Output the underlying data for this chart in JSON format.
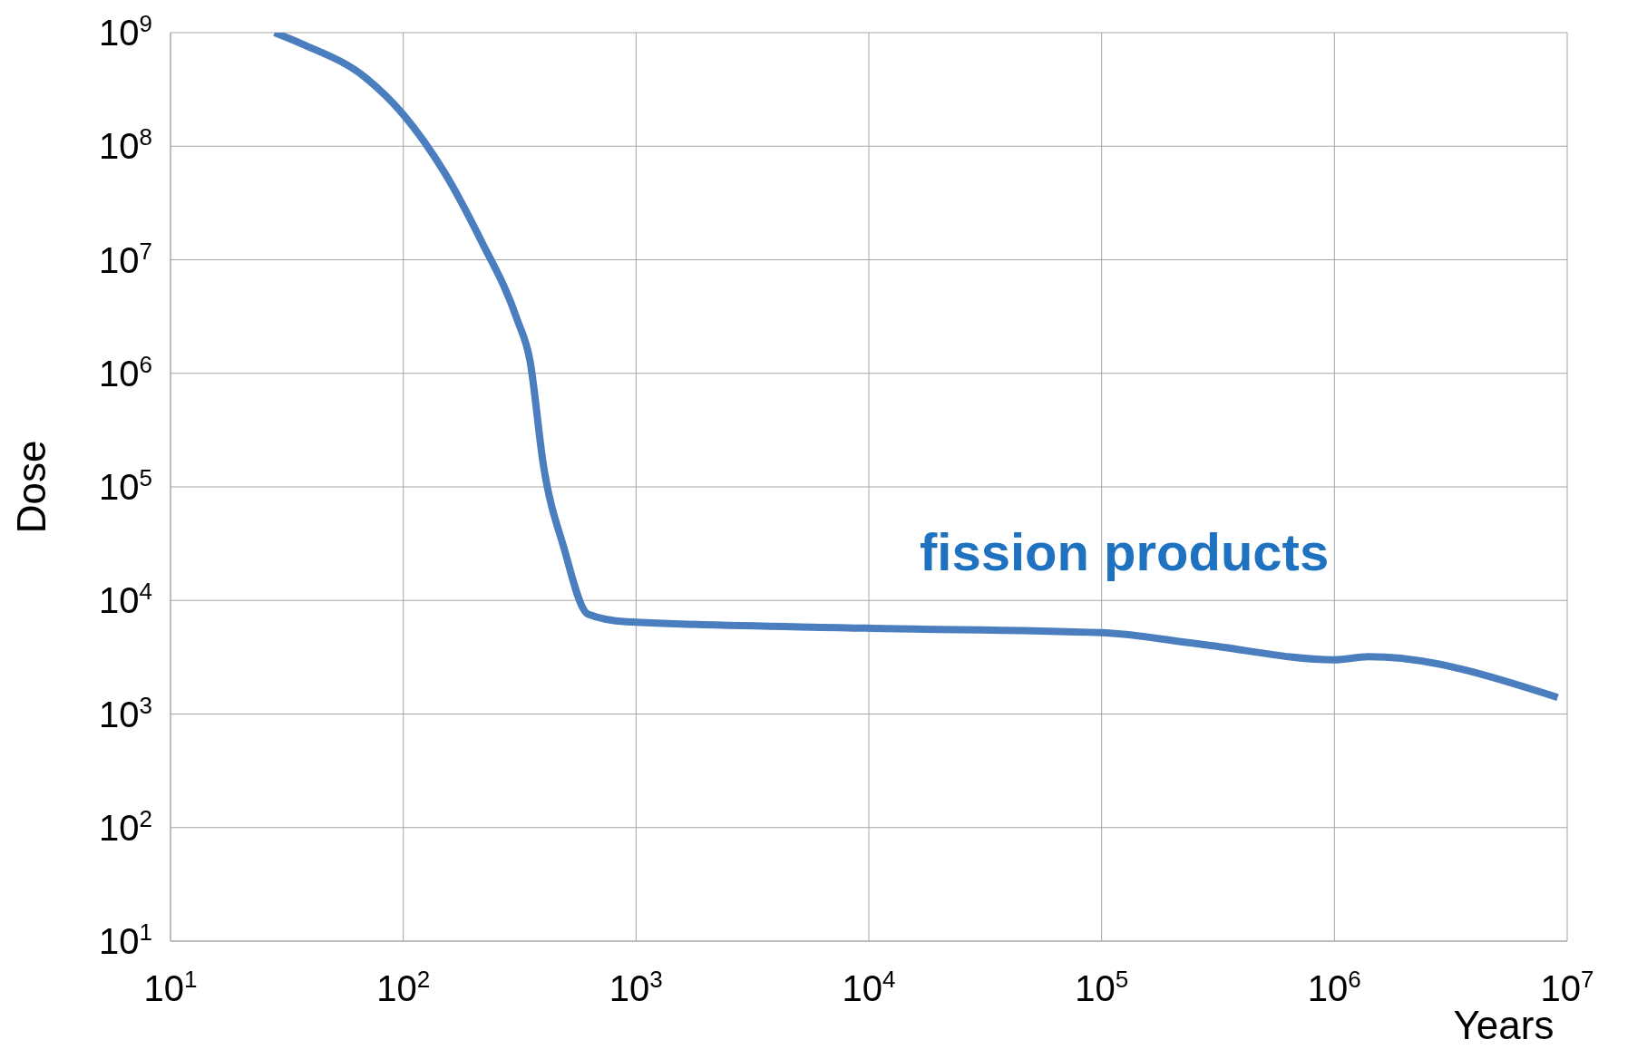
{
  "chart_data": {
    "type": "line",
    "xlabel": "Years",
    "ylabel": "Dose",
    "log": "xy",
    "grid": true,
    "marker": "none",
    "line_style": "solid",
    "xlim": [
      10,
      10000000
    ],
    "ylim": [
      10,
      1000000000
    ],
    "xticks": [
      {
        "value": 10,
        "label": "10$^{1}$"
      },
      {
        "value": 100,
        "label": "10$^{2}$"
      },
      {
        "value": 1000,
        "label": "10$^{3}$"
      },
      {
        "value": 10000,
        "label": "10$^{4}$"
      },
      {
        "value": 100000,
        "label": "10$^{5}$"
      },
      {
        "value": 1000000,
        "label": "10$^{6}$"
      },
      {
        "value": 10000000,
        "label": "10$^{7}$"
      }
    ],
    "yticks": [
      {
        "value": 10,
        "label": "10$^{1}$"
      },
      {
        "value": 100,
        "label": "10$^{2}$"
      },
      {
        "value": 1000,
        "label": "10$^{3}$"
      },
      {
        "value": 10000,
        "label": "10$^{4}$"
      },
      {
        "value": 100000,
        "label": "10$^{5}$"
      },
      {
        "value": 1000000,
        "label": "10$^{6}$"
      },
      {
        "value": 10000000,
        "label": "10$^{7}$"
      },
      {
        "value": 100000000,
        "label": "10$^{8}$"
      },
      {
        "value": 1000000000,
        "label": "10$^{9}$"
      }
    ],
    "x": [
      28,
      37,
      69,
      100,
      150,
      215,
      308,
      350,
      400,
      490,
      620,
      910,
      9800,
      100000,
      270000,
      1000000,
      1400000,
      9100000
    ],
    "series": [
      {
        "color": "#4a7ebf",
        "values": [
          1000000000,
          790000000,
          400000000,
          190000000,
          59000000,
          15000000,
          3000000,
          1300000,
          155000,
          29000,
          7600,
          6500,
          5700,
          5200,
          4100,
          3000,
          3200,
          1400
        ]
      }
    ],
    "annotations": [
      "fission products"
    ]
  }
}
